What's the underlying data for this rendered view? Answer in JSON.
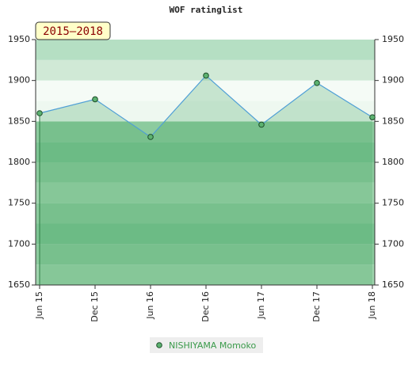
{
  "chart_data": {
    "type": "line",
    "title": "WOF ratinglist",
    "badge": "2015–2018",
    "categories": [
      "Jun 15",
      "Dec 15",
      "Jun 16",
      "Dec 16",
      "Jun 17",
      "Dec 17",
      "Jun 18"
    ],
    "series": [
      {
        "name": "NISHIYAMA Momoko",
        "color": "#4f9fd6",
        "marker_color": "#5cb270",
        "values": [
          1860,
          1877,
          1831,
          1906,
          1846,
          1897,
          1855
        ]
      }
    ],
    "ylim": [
      1650,
      1950
    ],
    "yticks": [
      1650,
      1700,
      1750,
      1800,
      1850,
      1900,
      1950
    ],
    "grid": true
  }
}
